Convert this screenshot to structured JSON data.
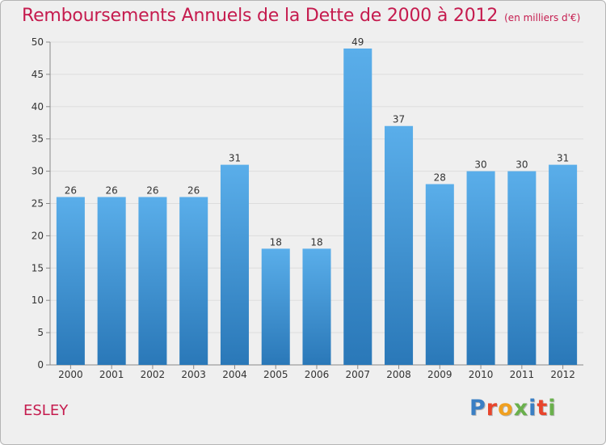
{
  "title": "Remboursements Annuels de la Dette de 2000 à 2012",
  "subtitle": "(en milliers d'€)",
  "commune": "ESLEY",
  "logo": {
    "text": "Proxiti",
    "colors": [
      "#3a7fc4",
      "#e8452c",
      "#f0a020",
      "#6ab04c",
      "#3a7fc4",
      "#e8452c",
      "#6ab04c"
    ]
  },
  "colors": {
    "bar_top": "#5aaeea",
    "bar_bottom": "#2a78b8",
    "title": "#c51b4e",
    "background": "#efefef",
    "grid": "#dddddd",
    "axis_text": "#333333"
  },
  "chart_data": {
    "type": "bar",
    "title": "Remboursements Annuels de la Dette de 2000 à 2012",
    "subtitle": "(en milliers d'€)",
    "categories": [
      "2000",
      "2001",
      "2002",
      "2003",
      "2004",
      "2005",
      "2006",
      "2007",
      "2008",
      "2009",
      "2010",
      "2011",
      "2012"
    ],
    "values": [
      26,
      26,
      26,
      26,
      31,
      18,
      18,
      49,
      37,
      28,
      30,
      30,
      31
    ],
    "ylim": [
      0,
      50
    ],
    "yticks": [
      0,
      5,
      10,
      15,
      20,
      25,
      30,
      35,
      40,
      45,
      50
    ],
    "data_labels": true,
    "grid": true,
    "xlabel": "",
    "ylabel": ""
  }
}
